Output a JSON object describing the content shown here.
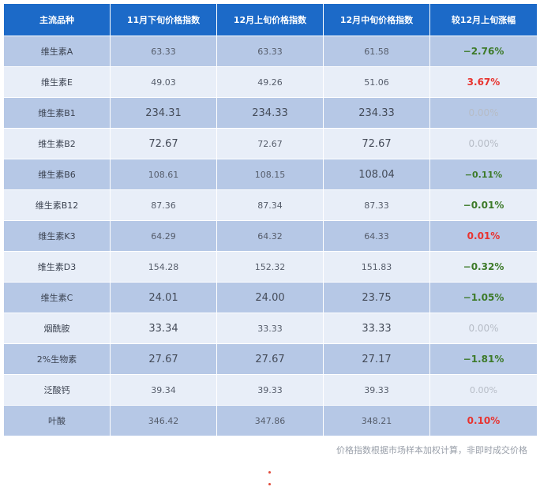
{
  "table": {
    "headers": [
      "主流品种",
      "11月下旬价格指数",
      "12月上旬价格指数",
      "12月中旬价格指数",
      "较12月上旬涨幅"
    ],
    "rows": [
      {
        "name": "维生素A",
        "c1": "63.33",
        "c2": "63.33",
        "c3": "61.58",
        "change": "−2.76%"
      },
      {
        "name": "维生素E",
        "c1": "49.03",
        "c2": "49.26",
        "c3": "51.06",
        "change": "3.67%"
      },
      {
        "name": "维生素B1",
        "c1": "234.31",
        "c2": "234.33",
        "c3": "234.33",
        "change": "0.00%"
      },
      {
        "name": "维生素B2",
        "c1": "72.67",
        "c2": "72.67",
        "c3": "72.67",
        "change": "0.00%"
      },
      {
        "name": "维生素B6",
        "c1": "108.61",
        "c2": "108.15",
        "c3": "108.04",
        "change": "−0.11%"
      },
      {
        "name": "维生素B12",
        "c1": "87.36",
        "c2": "87.34",
        "c3": "87.33",
        "change": "−0.01%"
      },
      {
        "name": "维生素K3",
        "c1": "64.29",
        "c2": "64.32",
        "c3": "64.33",
        "change": "0.01%"
      },
      {
        "name": "维生素D3",
        "c1": "154.28",
        "c2": "152.32",
        "c3": "151.83",
        "change": "−0.32%"
      },
      {
        "name": "维生素C",
        "c1": "24.01",
        "c2": "24.00",
        "c3": "23.75",
        "change": "−1.05%"
      },
      {
        "name": "烟酰胺",
        "c1": "33.34",
        "c2": "33.33",
        "c3": "33.33",
        "change": "0.00%"
      },
      {
        "name": "2%生物素",
        "c1": "27.67",
        "c2": "27.67",
        "c3": "27.17",
        "change": "−1.81%"
      },
      {
        "name": "泛酸钙",
        "c1": "39.34",
        "c2": "39.33",
        "c3": "39.33",
        "change": "0.00%"
      },
      {
        "name": "叶酸",
        "c1": "346.42",
        "c2": "347.86",
        "c3": "348.21",
        "change": "0.10%"
      }
    ]
  },
  "note": "价格指数根据市场样本加权计算，非即时成交价格",
  "colors": {
    "header_bg": "#1c6ac8",
    "row_dark": "#b6c8e6",
    "row_light": "#e8eef8",
    "decrease": "#3d7a29",
    "increase": "#e8332f",
    "unchanged": "#b6bcc6"
  }
}
